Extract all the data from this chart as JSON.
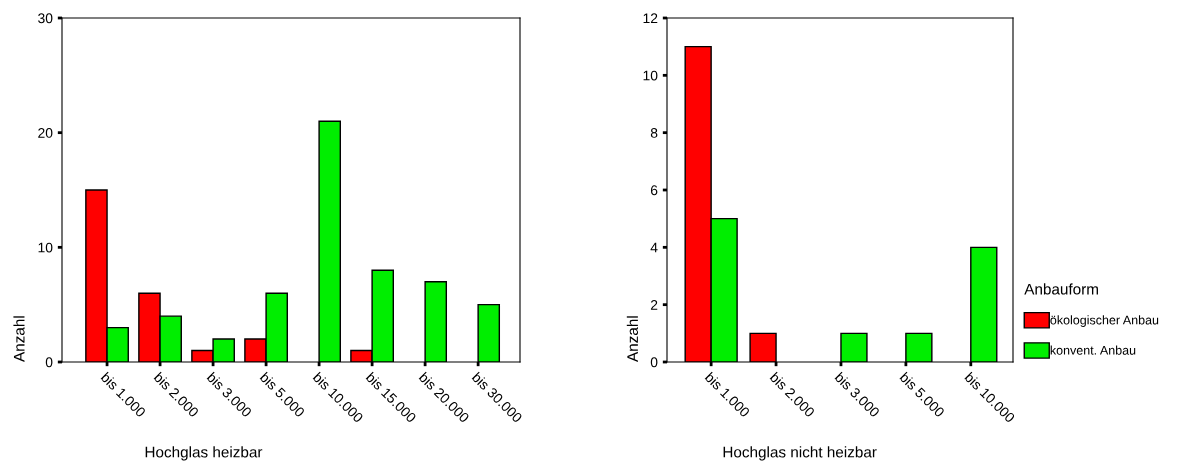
{
  "chart_data": [
    {
      "type": "bar",
      "xlabel": "Hochglas heizbar",
      "ylabel": "Anzahl",
      "categories": [
        "bis 1.000",
        "bis 2.000",
        "bis 3.000",
        "bis 5.000",
        "bis 10.000",
        "bis 15.000",
        "bis 20.000",
        "bis 30.000"
      ],
      "series": [
        {
          "color": "#ff0000",
          "values": [
            15,
            6,
            1,
            2,
            null,
            1,
            null,
            null
          ]
        },
        {
          "color": "#00ee00",
          "values": [
            3,
            4,
            2,
            6,
            21,
            8,
            7,
            5
          ]
        }
      ],
      "ylim": [
        0,
        30
      ],
      "yticks": [
        0,
        10,
        20,
        30
      ],
      "grid": false,
      "legend": false
    },
    {
      "type": "bar",
      "xlabel": "Hochglas nicht heizbar",
      "ylabel": "Anzahl",
      "legend_title": "Anbauform",
      "categories": [
        "bis 1.000",
        "bis 2.000",
        "bis 3.000",
        "bis 5.000",
        "bis 10.000"
      ],
      "series": [
        {
          "name": "ökologischer Anbau",
          "color": "#ff0000",
          "values": [
            11,
            1,
            null,
            null,
            null
          ]
        },
        {
          "name": "konvent. Anbau",
          "color": "#00ee00",
          "values": [
            5,
            null,
            1,
            1,
            4
          ]
        }
      ],
      "ylim": [
        0,
        12
      ],
      "yticks": [
        0,
        2,
        4,
        6,
        8,
        10,
        12
      ],
      "grid": false,
      "legend": "right"
    }
  ]
}
